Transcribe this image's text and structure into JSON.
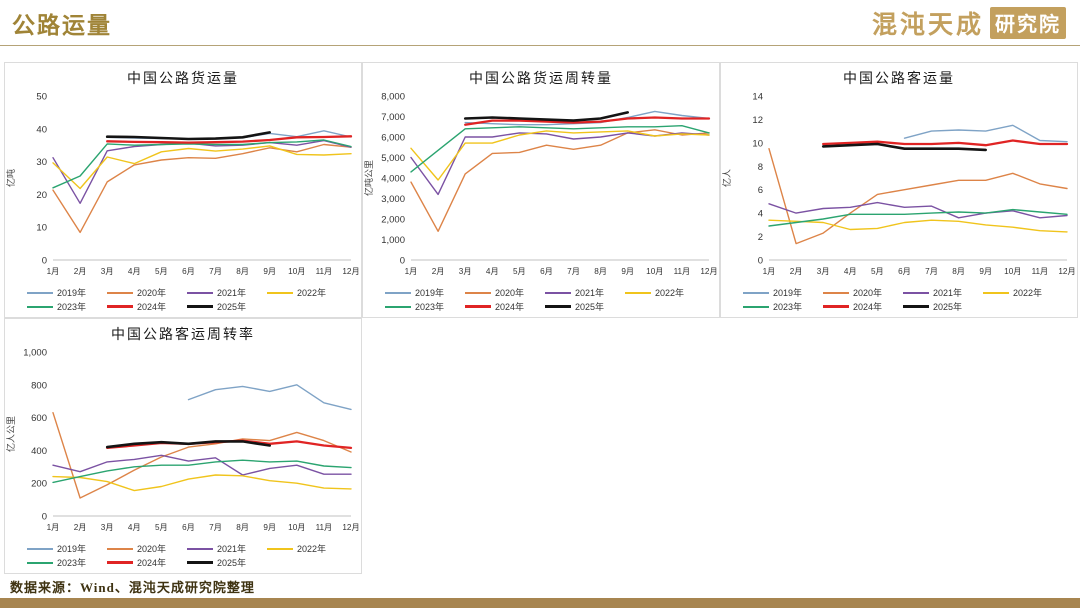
{
  "header": {
    "title": "公路运量",
    "brand": "混沌天成",
    "brand_badge": "研究院"
  },
  "footer": {
    "source": "数据来源：Wind、混沌天成研究院整理"
  },
  "accent_color": "#a08437",
  "bottom_bar_color": "#a78550",
  "months": [
    "1月",
    "2月",
    "3月",
    "4月",
    "5月",
    "6月",
    "7月",
    "8月",
    "9月",
    "10月",
    "11月",
    "12月"
  ],
  "colors": {
    "2019年": "#7FA3C6",
    "2020年": "#DD8448",
    "2021年": "#7B52A3",
    "2022年": "#F0C41C",
    "2023年": "#2BA470",
    "2024年": "#E02424",
    "2025年": "#141414"
  },
  "chart_data": [
    {
      "type": "line",
      "title": "中国公路货运量",
      "ylabel": "亿吨",
      "ylim": [
        0,
        50
      ],
      "ystep": 10,
      "legend_position": "bottom",
      "grid": false,
      "series": [
        {
          "name": "2019年",
          "values": [
            null,
            null,
            37.4,
            37.2,
            37.0,
            36.9,
            37.0,
            37.3,
            38.6,
            37.6,
            39.4,
            37.5
          ]
        },
        {
          "name": "2020年",
          "values": [
            21.3,
            8.4,
            23.8,
            29.0,
            30.5,
            31.2,
            31.0,
            32.4,
            34.2,
            33.0,
            35.2,
            34.4
          ]
        },
        {
          "name": "2021年",
          "values": [
            31.2,
            17.3,
            33.3,
            34.6,
            35.2,
            35.6,
            34.8,
            35.0,
            35.8,
            35.0,
            36.4,
            34.4
          ]
        },
        {
          "name": "2022年",
          "values": [
            29.6,
            21.8,
            31.4,
            29.4,
            33.0,
            34.0,
            33.2,
            33.8,
            34.8,
            32.2,
            32.0,
            32.4
          ]
        },
        {
          "name": "2023年",
          "values": [
            22.0,
            25.6,
            35.4,
            35.0,
            35.2,
            35.4,
            35.2,
            35.2,
            35.8,
            36.0,
            36.6,
            34.6
          ]
        },
        {
          "name": "2024年",
          "values": [
            null,
            null,
            36.2,
            36.0,
            35.9,
            35.8,
            35.9,
            36.1,
            36.6,
            37.4,
            37.5,
            37.7
          ]
        },
        {
          "name": "2025年",
          "values": [
            null,
            null,
            37.6,
            37.5,
            37.2,
            36.9,
            37.0,
            37.4,
            38.9,
            null,
            null,
            null
          ]
        }
      ]
    },
    {
      "type": "line",
      "title": "中国公路货运周转量",
      "ylabel": "亿吨公里",
      "ylim": [
        0,
        8000
      ],
      "ystep": 1000,
      "legend_position": "bottom",
      "grid": false,
      "series": [
        {
          "name": "2019年",
          "values": [
            null,
            null,
            6700,
            6650,
            6600,
            6600,
            6650,
            6700,
            6950,
            7250,
            7050,
            6900
          ]
        },
        {
          "name": "2020年",
          "values": [
            3800,
            1400,
            4200,
            5200,
            5250,
            5600,
            5400,
            5600,
            6200,
            6350,
            6100,
            6200
          ]
        },
        {
          "name": "2021年",
          "values": [
            5000,
            3200,
            6000,
            6000,
            6200,
            6150,
            5900,
            6000,
            6200,
            6050,
            6200,
            6100
          ]
        },
        {
          "name": "2022年",
          "values": [
            5450,
            3900,
            5700,
            5700,
            6100,
            6300,
            6200,
            6250,
            6300,
            6050,
            6150,
            6100
          ]
        },
        {
          "name": "2023年",
          "values": [
            4300,
            5350,
            6400,
            6450,
            6500,
            6450,
            6400,
            6450,
            6500,
            6500,
            6550,
            6200
          ]
        },
        {
          "name": "2024年",
          "values": [
            null,
            null,
            6600,
            6800,
            6800,
            6750,
            6700,
            6750,
            6900,
            6950,
            6900,
            6900
          ]
        },
        {
          "name": "2025年",
          "values": [
            null,
            null,
            6900,
            6950,
            6900,
            6850,
            6800,
            6900,
            7200,
            null,
            null,
            null
          ]
        }
      ]
    },
    {
      "type": "line",
      "title": "中国公路客运量",
      "ylabel": "亿人",
      "ylim": [
        0,
        14
      ],
      "ystep": 2,
      "legend_position": "bottom",
      "grid": false,
      "series": [
        {
          "name": "2019年",
          "values": [
            null,
            null,
            null,
            null,
            null,
            10.4,
            11.0,
            11.1,
            11.0,
            11.5,
            10.2,
            10.1
          ]
        },
        {
          "name": "2020年",
          "values": [
            9.5,
            1.4,
            2.3,
            4.0,
            5.6,
            6.0,
            6.4,
            6.8,
            6.8,
            7.4,
            6.5,
            6.1
          ]
        },
        {
          "name": "2021年",
          "values": [
            4.8,
            4.0,
            4.4,
            4.5,
            4.9,
            4.5,
            4.6,
            3.6,
            4.0,
            4.2,
            3.6,
            3.8
          ]
        },
        {
          "name": "2022年",
          "values": [
            3.4,
            3.3,
            3.2,
            2.6,
            2.7,
            3.2,
            3.4,
            3.3,
            3.0,
            2.8,
            2.5,
            2.4
          ]
        },
        {
          "name": "2023年",
          "values": [
            2.9,
            3.2,
            3.5,
            3.9,
            3.9,
            3.9,
            4.0,
            4.1,
            4.0,
            4.3,
            4.1,
            3.9
          ]
        },
        {
          "name": "2024年",
          "values": [
            null,
            null,
            9.9,
            10.0,
            10.1,
            9.9,
            9.9,
            10.0,
            9.8,
            10.2,
            9.9,
            9.9
          ]
        },
        {
          "name": "2025年",
          "values": [
            null,
            null,
            9.7,
            9.8,
            9.9,
            9.5,
            9.5,
            9.5,
            9.4,
            null,
            null,
            null
          ]
        }
      ]
    },
    {
      "type": "line",
      "title": "中国公路客运周转率",
      "ylabel": "亿人公里",
      "ylim": [
        0,
        1000
      ],
      "ystep": 200,
      "legend_position": "bottom",
      "grid": false,
      "series": [
        {
          "name": "2019年",
          "values": [
            null,
            null,
            null,
            null,
            null,
            710,
            770,
            790,
            760,
            800,
            690,
            650
          ]
        },
        {
          "name": "2020年",
          "values": [
            630,
            110,
            190,
            280,
            360,
            420,
            440,
            470,
            460,
            510,
            460,
            390
          ]
        },
        {
          "name": "2021年",
          "values": [
            310,
            270,
            330,
            345,
            370,
            335,
            355,
            250,
            290,
            310,
            255,
            255
          ]
        },
        {
          "name": "2022年",
          "values": [
            240,
            235,
            210,
            155,
            180,
            225,
            250,
            245,
            215,
            200,
            170,
            165
          ]
        },
        {
          "name": "2023年",
          "values": [
            205,
            240,
            275,
            300,
            310,
            310,
            330,
            340,
            330,
            335,
            305,
            295
          ]
        },
        {
          "name": "2024年",
          "values": [
            null,
            null,
            415,
            430,
            445,
            440,
            450,
            460,
            440,
            455,
            430,
            415
          ]
        },
        {
          "name": "2025年",
          "values": [
            null,
            null,
            420,
            440,
            450,
            440,
            455,
            455,
            430,
            null,
            null,
            null
          ]
        }
      ]
    }
  ]
}
